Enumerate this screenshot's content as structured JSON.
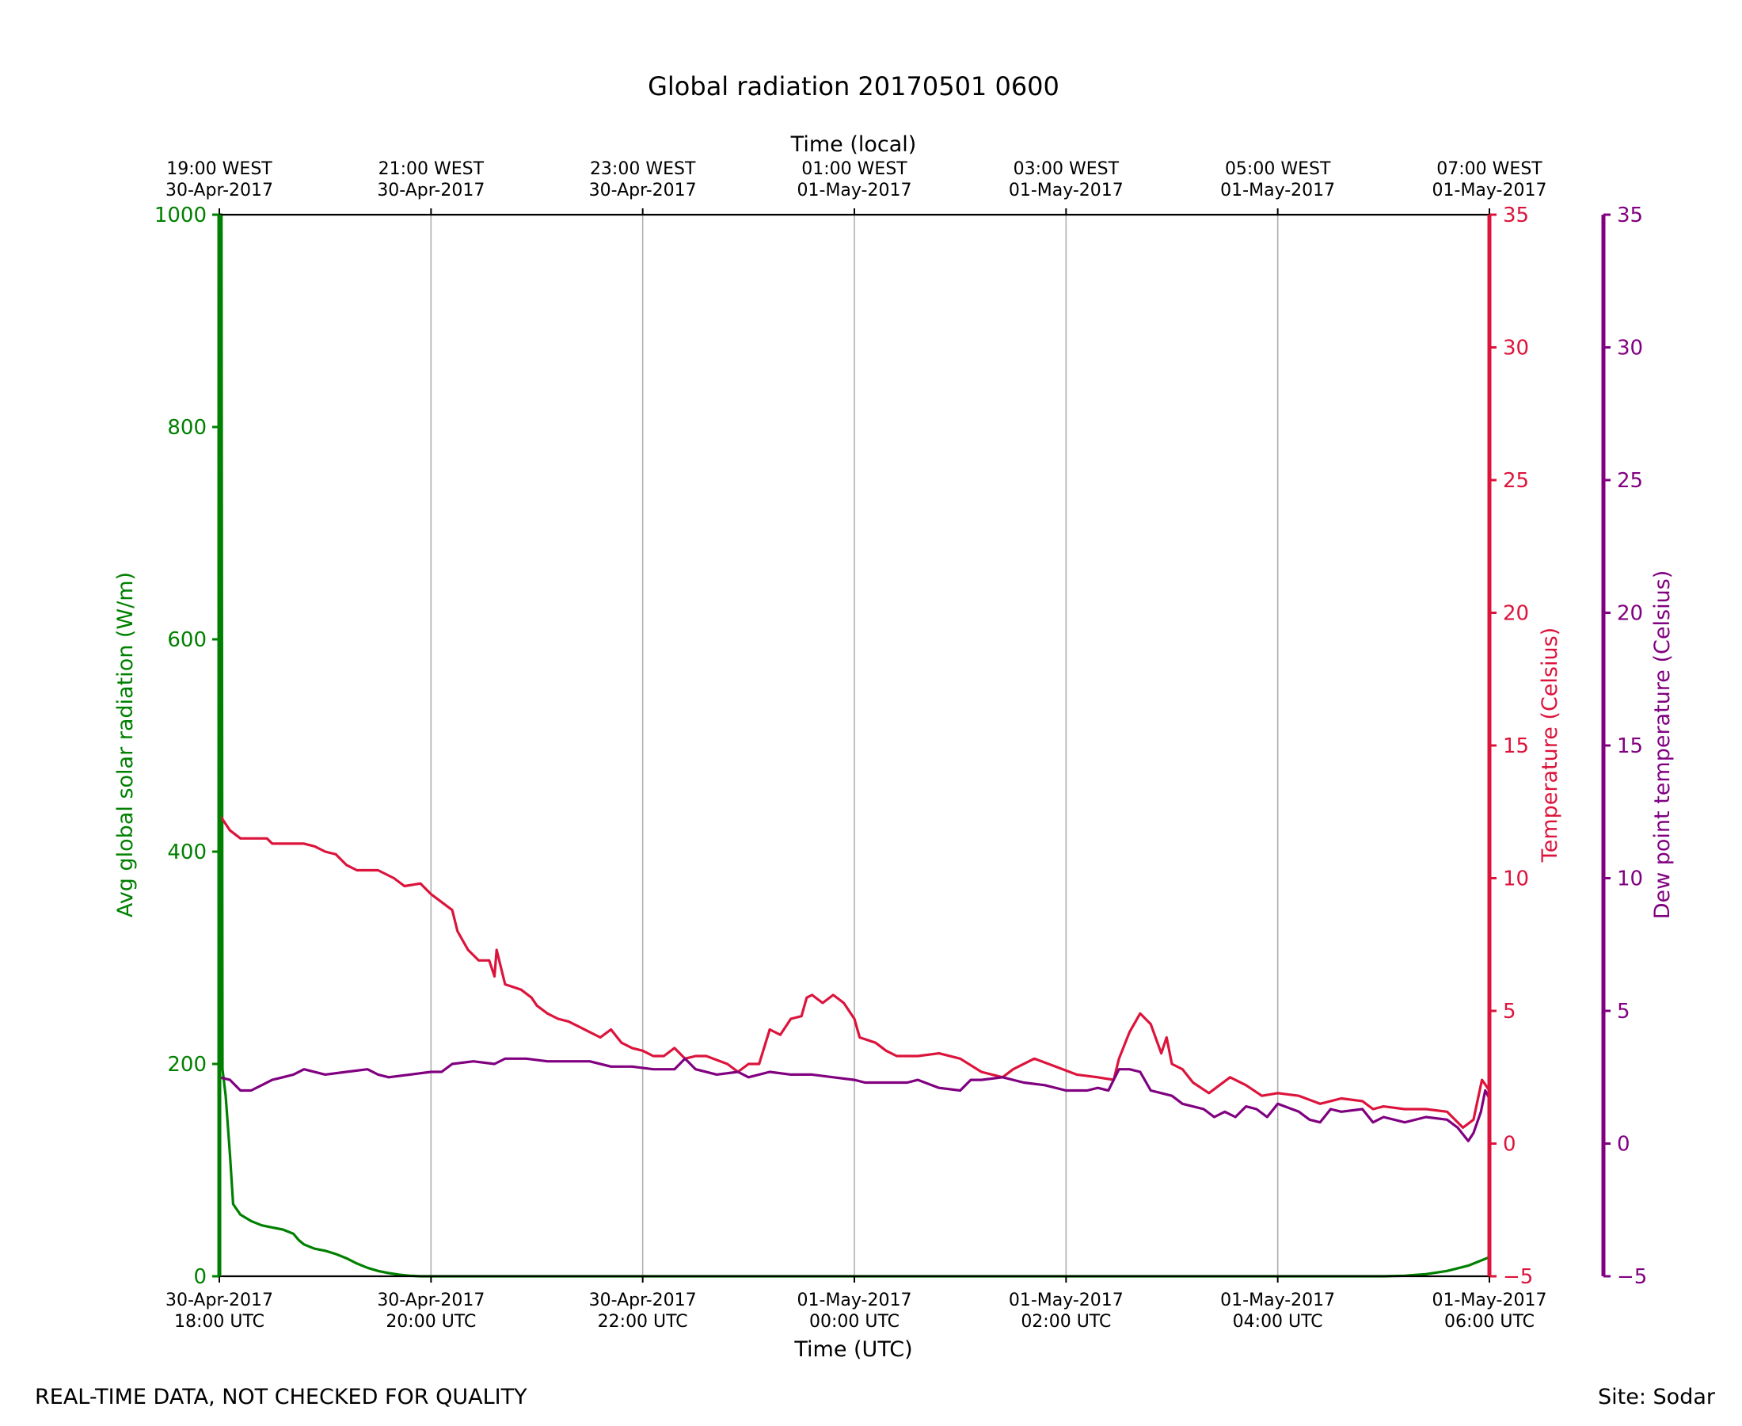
{
  "footer": {
    "left": "REAL-TIME DATA, NOT CHECKED FOR QUALITY",
    "right": "Site: Sodar"
  },
  "chart_data": {
    "type": "line",
    "title": "Global radiation 20170501 0600",
    "xlabel": "Time (UTC)",
    "xlabel_top": "Time (local)",
    "xlim_hours": [
      0,
      12
    ],
    "x_unit": "hours since 30-Apr-2017 18:00 UTC",
    "x_ticks": [
      {
        "h": 0,
        "utc_date": "30-Apr-2017",
        "utc_time": "18:00 UTC",
        "local_time": "19:00 WEST",
        "local_date": "30-Apr-2017"
      },
      {
        "h": 2,
        "utc_date": "30-Apr-2017",
        "utc_time": "20:00 UTC",
        "local_time": "21:00 WEST",
        "local_date": "30-Apr-2017"
      },
      {
        "h": 4,
        "utc_date": "30-Apr-2017",
        "utc_time": "22:00 UTC",
        "local_time": "23:00 WEST",
        "local_date": "30-Apr-2017"
      },
      {
        "h": 6,
        "utc_date": "01-May-2017",
        "utc_time": "00:00 UTC",
        "local_time": "01:00 WEST",
        "local_date": "01-May-2017"
      },
      {
        "h": 8,
        "utc_date": "01-May-2017",
        "utc_time": "02:00 UTC",
        "local_time": "03:00 WEST",
        "local_date": "01-May-2017"
      },
      {
        "h": 10,
        "utc_date": "01-May-2017",
        "utc_time": "04:00 UTC",
        "local_time": "05:00 WEST",
        "local_date": "01-May-2017"
      },
      {
        "h": 12,
        "utc_date": "01-May-2017",
        "utc_time": "06:00 UTC",
        "local_time": "07:00 WEST",
        "local_date": "01-May-2017"
      }
    ],
    "grid": "vertical",
    "axes": [
      {
        "id": "radiation",
        "label": "Avg global solar radiation (W/m)",
        "color": "#008000",
        "ylim": [
          0,
          1000
        ],
        "ticks": [
          0,
          200,
          400,
          600,
          800,
          1000
        ],
        "side": "left"
      },
      {
        "id": "temperature",
        "label": "Temperature (Celsius)",
        "color": "#dc143c",
        "ylim": [
          -5,
          35
        ],
        "ticks": [
          -5,
          0,
          5,
          10,
          15,
          20,
          25,
          30,
          35
        ],
        "side": "right"
      },
      {
        "id": "dewpoint",
        "label": "Dew point temperature (Celsius)",
        "color": "#800080",
        "ylim": [
          -5,
          35
        ],
        "ticks": [
          -5,
          0,
          5,
          10,
          15,
          20,
          25,
          30,
          35
        ],
        "side": "right-outer"
      }
    ],
    "series": [
      {
        "name": "Avg global solar radiation",
        "axis": "radiation",
        "color": "#008000",
        "points": [
          [
            0.0,
            1000
          ],
          [
            0.02,
            1000
          ],
          [
            0.03,
            195
          ],
          [
            0.06,
            170
          ],
          [
            0.1,
            115
          ],
          [
            0.13,
            68
          ],
          [
            0.2,
            58
          ],
          [
            0.3,
            52
          ],
          [
            0.4,
            48
          ],
          [
            0.5,
            46
          ],
          [
            0.6,
            44
          ],
          [
            0.7,
            40
          ],
          [
            0.75,
            34
          ],
          [
            0.8,
            30
          ],
          [
            0.9,
            26
          ],
          [
            1.0,
            24
          ],
          [
            1.1,
            21
          ],
          [
            1.2,
            17
          ],
          [
            1.3,
            12
          ],
          [
            1.4,
            8
          ],
          [
            1.5,
            5
          ],
          [
            1.6,
            3
          ],
          [
            1.7,
            1.5
          ],
          [
            1.8,
            0.5
          ],
          [
            1.9,
            0
          ],
          [
            2.0,
            0
          ],
          [
            11.0,
            0
          ],
          [
            11.2,
            0.5
          ],
          [
            11.4,
            2
          ],
          [
            11.6,
            5
          ],
          [
            11.8,
            10
          ],
          [
            12.0,
            18
          ]
        ]
      },
      {
        "name": "Temperature",
        "axis": "temperature",
        "color": "#dc143c",
        "points": [
          [
            0.0,
            12.4
          ],
          [
            0.1,
            11.8
          ],
          [
            0.2,
            11.5
          ],
          [
            0.3,
            11.5
          ],
          [
            0.45,
            11.5
          ],
          [
            0.5,
            11.3
          ],
          [
            0.8,
            11.3
          ],
          [
            0.9,
            11.2
          ],
          [
            1.0,
            11.0
          ],
          [
            1.1,
            10.9
          ],
          [
            1.2,
            10.5
          ],
          [
            1.3,
            10.3
          ],
          [
            1.5,
            10.3
          ],
          [
            1.65,
            10.0
          ],
          [
            1.75,
            9.7
          ],
          [
            1.9,
            9.8
          ],
          [
            2.0,
            9.4
          ],
          [
            2.1,
            9.1
          ],
          [
            2.2,
            8.8
          ],
          [
            2.25,
            8.0
          ],
          [
            2.35,
            7.3
          ],
          [
            2.45,
            6.9
          ],
          [
            2.55,
            6.9
          ],
          [
            2.6,
            6.3
          ],
          [
            2.62,
            7.3
          ],
          [
            2.7,
            6.0
          ],
          [
            2.85,
            5.8
          ],
          [
            2.95,
            5.5
          ],
          [
            3.0,
            5.2
          ],
          [
            3.1,
            4.9
          ],
          [
            3.2,
            4.7
          ],
          [
            3.3,
            4.6
          ],
          [
            3.4,
            4.4
          ],
          [
            3.5,
            4.2
          ],
          [
            3.6,
            4.0
          ],
          [
            3.7,
            4.3
          ],
          [
            3.8,
            3.8
          ],
          [
            3.9,
            3.6
          ],
          [
            4.0,
            3.5
          ],
          [
            4.1,
            3.3
          ],
          [
            4.2,
            3.3
          ],
          [
            4.3,
            3.6
          ],
          [
            4.4,
            3.2
          ],
          [
            4.5,
            3.3
          ],
          [
            4.6,
            3.3
          ],
          [
            4.8,
            3.0
          ],
          [
            4.9,
            2.7
          ],
          [
            5.0,
            3.0
          ],
          [
            5.1,
            3.0
          ],
          [
            5.2,
            4.3
          ],
          [
            5.3,
            4.1
          ],
          [
            5.4,
            4.7
          ],
          [
            5.5,
            4.8
          ],
          [
            5.55,
            5.5
          ],
          [
            5.6,
            5.6
          ],
          [
            5.7,
            5.3
          ],
          [
            5.8,
            5.6
          ],
          [
            5.9,
            5.3
          ],
          [
            6.0,
            4.7
          ],
          [
            6.05,
            4.0
          ],
          [
            6.2,
            3.8
          ],
          [
            6.3,
            3.5
          ],
          [
            6.4,
            3.3
          ],
          [
            6.6,
            3.3
          ],
          [
            6.8,
            3.4
          ],
          [
            7.0,
            3.2
          ],
          [
            7.2,
            2.7
          ],
          [
            7.4,
            2.5
          ],
          [
            7.5,
            2.8
          ],
          [
            7.7,
            3.2
          ],
          [
            7.9,
            2.9
          ],
          [
            8.1,
            2.6
          ],
          [
            8.3,
            2.5
          ],
          [
            8.45,
            2.4
          ],
          [
            8.5,
            3.2
          ],
          [
            8.6,
            4.2
          ],
          [
            8.7,
            4.9
          ],
          [
            8.8,
            4.5
          ],
          [
            8.9,
            3.4
          ],
          [
            8.95,
            4.0
          ],
          [
            9.0,
            3.0
          ],
          [
            9.1,
            2.8
          ],
          [
            9.2,
            2.3
          ],
          [
            9.35,
            1.9
          ],
          [
            9.45,
            2.2
          ],
          [
            9.55,
            2.5
          ],
          [
            9.7,
            2.2
          ],
          [
            9.85,
            1.8
          ],
          [
            10.0,
            1.9
          ],
          [
            10.2,
            1.8
          ],
          [
            10.4,
            1.5
          ],
          [
            10.6,
            1.7
          ],
          [
            10.8,
            1.6
          ],
          [
            10.9,
            1.3
          ],
          [
            11.0,
            1.4
          ],
          [
            11.2,
            1.3
          ],
          [
            11.4,
            1.3
          ],
          [
            11.6,
            1.2
          ],
          [
            11.75,
            0.6
          ],
          [
            11.85,
            0.9
          ],
          [
            11.93,
            2.4
          ],
          [
            12.0,
            2.0
          ]
        ]
      },
      {
        "name": "Dew point temperature",
        "axis": "dewpoint",
        "color": "#800080",
        "points": [
          [
            0.0,
            2.5
          ],
          [
            0.1,
            2.4
          ],
          [
            0.2,
            2.0
          ],
          [
            0.3,
            2.0
          ],
          [
            0.4,
            2.2
          ],
          [
            0.5,
            2.4
          ],
          [
            0.6,
            2.5
          ],
          [
            0.7,
            2.6
          ],
          [
            0.8,
            2.8
          ],
          [
            1.0,
            2.6
          ],
          [
            1.2,
            2.7
          ],
          [
            1.4,
            2.8
          ],
          [
            1.5,
            2.6
          ],
          [
            1.6,
            2.5
          ],
          [
            1.8,
            2.6
          ],
          [
            2.0,
            2.7
          ],
          [
            2.1,
            2.7
          ],
          [
            2.2,
            3.0
          ],
          [
            2.4,
            3.1
          ],
          [
            2.6,
            3.0
          ],
          [
            2.7,
            3.2
          ],
          [
            2.9,
            3.2
          ],
          [
            3.1,
            3.1
          ],
          [
            3.3,
            3.1
          ],
          [
            3.5,
            3.1
          ],
          [
            3.7,
            2.9
          ],
          [
            3.9,
            2.9
          ],
          [
            4.1,
            2.8
          ],
          [
            4.3,
            2.8
          ],
          [
            4.4,
            3.2
          ],
          [
            4.5,
            2.8
          ],
          [
            4.7,
            2.6
          ],
          [
            4.9,
            2.7
          ],
          [
            5.0,
            2.5
          ],
          [
            5.2,
            2.7
          ],
          [
            5.4,
            2.6
          ],
          [
            5.6,
            2.6
          ],
          [
            5.8,
            2.5
          ],
          [
            6.0,
            2.4
          ],
          [
            6.1,
            2.3
          ],
          [
            6.3,
            2.3
          ],
          [
            6.5,
            2.3
          ],
          [
            6.6,
            2.4
          ],
          [
            6.8,
            2.1
          ],
          [
            7.0,
            2.0
          ],
          [
            7.1,
            2.4
          ],
          [
            7.2,
            2.4
          ],
          [
            7.4,
            2.5
          ],
          [
            7.6,
            2.3
          ],
          [
            7.8,
            2.2
          ],
          [
            8.0,
            2.0
          ],
          [
            8.2,
            2.0
          ],
          [
            8.3,
            2.1
          ],
          [
            8.4,
            2.0
          ],
          [
            8.5,
            2.8
          ],
          [
            8.6,
            2.8
          ],
          [
            8.7,
            2.7
          ],
          [
            8.8,
            2.0
          ],
          [
            8.9,
            1.9
          ],
          [
            9.0,
            1.8
          ],
          [
            9.1,
            1.5
          ],
          [
            9.3,
            1.3
          ],
          [
            9.4,
            1.0
          ],
          [
            9.5,
            1.2
          ],
          [
            9.6,
            1.0
          ],
          [
            9.7,
            1.4
          ],
          [
            9.8,
            1.3
          ],
          [
            9.9,
            1.0
          ],
          [
            10.0,
            1.5
          ],
          [
            10.2,
            1.2
          ],
          [
            10.3,
            0.9
          ],
          [
            10.4,
            0.8
          ],
          [
            10.5,
            1.3
          ],
          [
            10.6,
            1.2
          ],
          [
            10.8,
            1.3
          ],
          [
            10.9,
            0.8
          ],
          [
            11.0,
            1.0
          ],
          [
            11.2,
            0.8
          ],
          [
            11.4,
            1.0
          ],
          [
            11.6,
            0.9
          ],
          [
            11.7,
            0.6
          ],
          [
            11.8,
            0.1
          ],
          [
            11.85,
            0.4
          ],
          [
            11.92,
            1.2
          ],
          [
            11.96,
            2.0
          ],
          [
            12.0,
            1.7
          ]
        ]
      }
    ]
  }
}
